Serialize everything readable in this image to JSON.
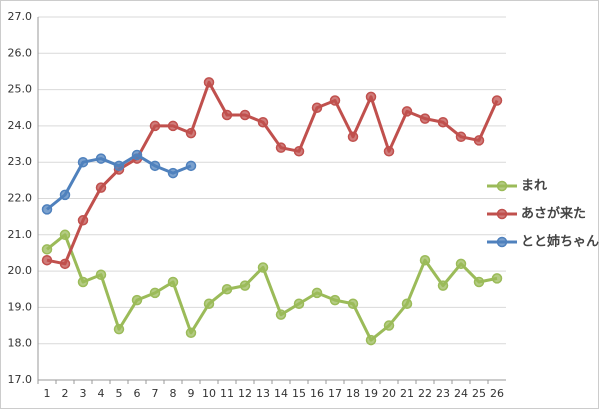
{
  "chart_data": {
    "type": "line",
    "categories": [
      "1",
      "2",
      "3",
      "4",
      "5",
      "6",
      "7",
      "8",
      "9",
      "10",
      "11",
      "12",
      "13",
      "14",
      "15",
      "16",
      "17",
      "18",
      "19",
      "20",
      "21",
      "22",
      "23",
      "24",
      "25",
      "26"
    ],
    "series": [
      {
        "name": "まれ",
        "color": "#9bbb59",
        "values": [
          20.6,
          21.0,
          19.7,
          19.9,
          18.4,
          19.2,
          19.4,
          19.7,
          18.3,
          19.1,
          19.5,
          19.6,
          20.1,
          18.8,
          19.1,
          19.4,
          19.2,
          19.1,
          18.1,
          18.5,
          19.1,
          20.3,
          19.6,
          20.2,
          19.7,
          19.8
        ]
      },
      {
        "name": "あさが来た",
        "color": "#c0504d",
        "values": [
          20.3,
          20.2,
          21.4,
          22.3,
          22.8,
          23.1,
          24.0,
          24.0,
          23.8,
          25.2,
          24.3,
          24.3,
          24.1,
          23.4,
          23.3,
          24.5,
          24.7,
          23.7,
          24.8,
          23.3,
          24.4,
          24.2,
          24.1,
          23.7,
          23.6,
          24.7
        ]
      },
      {
        "name": "とと姉ちゃん",
        "color": "#4f81bd",
        "values": [
          21.7,
          22.1,
          23.0,
          23.1,
          22.9,
          23.2,
          22.9,
          22.7,
          22.9,
          null,
          null,
          null,
          null,
          null,
          null,
          null,
          null,
          null,
          null,
          null,
          null,
          null,
          null,
          null,
          null,
          null
        ]
      }
    ],
    "ylim": [
      17,
      27
    ],
    "yticks": [
      {
        "value": 17,
        "label": "17.0"
      },
      {
        "value": 18,
        "label": "18.0"
      },
      {
        "value": 19,
        "label": "19.0"
      },
      {
        "value": 20,
        "label": "20.0"
      },
      {
        "value": 21,
        "label": "21.0"
      },
      {
        "value": 22,
        "label": "22.0"
      },
      {
        "value": 23,
        "label": "23.0"
      },
      {
        "value": 24,
        "label": "24.0"
      },
      {
        "value": 25,
        "label": "25.0"
      },
      {
        "value": 26,
        "label": "26.0"
      },
      {
        "value": 27,
        "label": "27.0"
      }
    ],
    "grid": true,
    "legend": "right"
  }
}
